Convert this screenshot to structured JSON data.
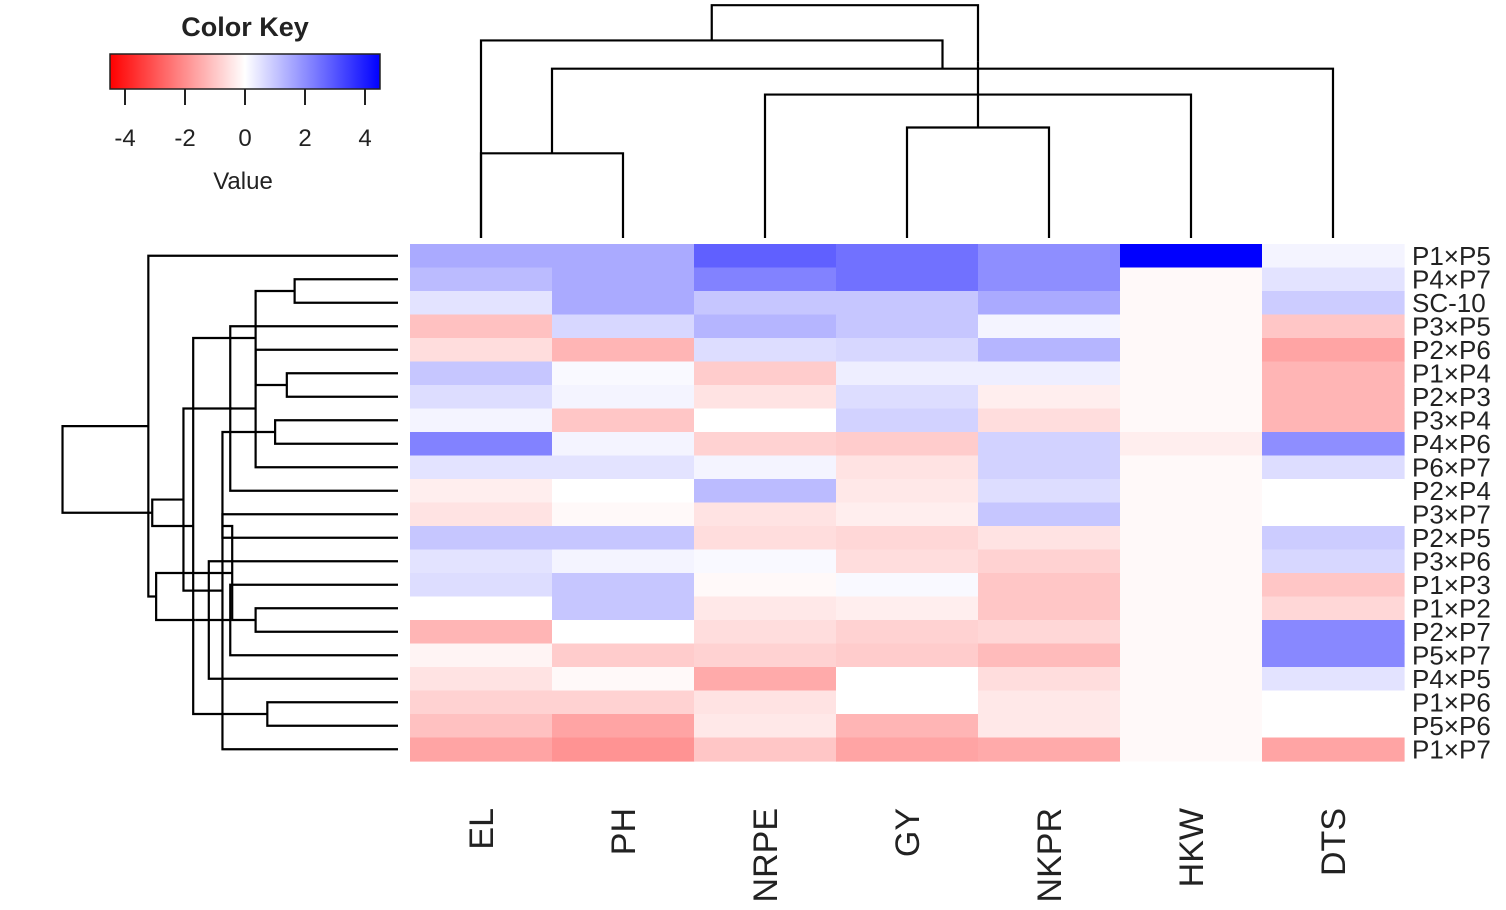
{
  "chart_data": {
    "type": "heatmap",
    "columns": [
      "EL",
      "PH",
      "NRPE",
      "GY",
      "NKPR",
      "HKW",
      "DTS"
    ],
    "rows": [
      "P1×P5",
      "P4×P7",
      "SC-10",
      "P3×P5",
      "P2×P6",
      "P1×P4",
      "P2×P3",
      "P3×P4",
      "P4×P6",
      "P6×P7",
      "P2×P4",
      "P3×P7",
      "P2×P5",
      "P3×P6",
      "P1×P3",
      "P1×P2",
      "P2×P7",
      "P5×P7",
      "P4×P5",
      "P1×P6",
      "P5×P6",
      "P1×P7"
    ],
    "values": [
      [
        1.5,
        1.5,
        2.8,
        2.5,
        2.0,
        4.5,
        0.2
      ],
      [
        1.2,
        1.5,
        2.2,
        2.5,
        2.0,
        -0.1,
        0.5
      ],
      [
        0.5,
        1.5,
        1.0,
        1.0,
        1.5,
        -0.1,
        0.9
      ],
      [
        -1.1,
        0.7,
        1.3,
        1.0,
        0.2,
        -0.1,
        -1.0
      ],
      [
        -0.6,
        -1.3,
        0.6,
        0.7,
        1.3,
        -0.1,
        -1.6
      ],
      [
        1.0,
        0.1,
        -0.9,
        0.3,
        0.3,
        -0.1,
        -1.3
      ],
      [
        0.6,
        0.2,
        -0.5,
        0.6,
        -0.3,
        -0.1,
        -1.3
      ],
      [
        0.2,
        -1.0,
        0.0,
        0.8,
        -0.6,
        -0.1,
        -1.3
      ],
      [
        2.2,
        0.2,
        -0.8,
        -0.9,
        0.8,
        -0.3,
        2.0
      ],
      [
        0.5,
        0.5,
        0.2,
        -0.5,
        0.8,
        -0.1,
        0.6
      ],
      [
        -0.3,
        0.0,
        1.2,
        -0.4,
        0.6,
        -0.1,
        0.0
      ],
      [
        -0.5,
        -0.1,
        -0.5,
        -0.3,
        1.0,
        -0.1,
        0.0
      ],
      [
        1.0,
        1.0,
        -0.6,
        -0.7,
        -0.5,
        -0.1,
        0.9
      ],
      [
        0.5,
        0.2,
        0.1,
        -0.6,
        -0.8,
        -0.1,
        0.7
      ],
      [
        0.6,
        1.0,
        -0.1,
        0.1,
        -1.0,
        -0.1,
        -1.0
      ],
      [
        0.0,
        1.0,
        -0.4,
        -0.3,
        -1.0,
        -0.1,
        -0.7
      ],
      [
        -1.3,
        0.0,
        -0.6,
        -0.8,
        -0.7,
        -0.1,
        2.1
      ],
      [
        -0.2,
        -0.9,
        -0.8,
        -0.9,
        -1.2,
        -0.1,
        2.1
      ],
      [
        -0.5,
        -0.1,
        -1.5,
        0.0,
        -0.6,
        -0.1,
        0.5
      ],
      [
        -0.8,
        -0.8,
        -0.5,
        0.0,
        -0.4,
        -0.1,
        0.0
      ],
      [
        -1.1,
        -1.6,
        -0.4,
        -1.3,
        -0.4,
        -0.1,
        0.0
      ],
      [
        -1.6,
        -1.9,
        -1.0,
        -1.6,
        -1.5,
        -0.1,
        -1.6
      ]
    ],
    "color_key": {
      "title": "Color Key",
      "xlabel": "Value",
      "range": [
        -4.5,
        4.5
      ],
      "ticks": [
        -4,
        -2,
        0,
        2,
        4
      ],
      "tick_labels": [
        "-4",
        "-2",
        "0",
        "2",
        "4"
      ],
      "low_color": "#ff0000",
      "mid_color": "#ffffff",
      "high_color": "#0000ff"
    },
    "col_dendrogram": [
      [
        1,
        2,
        3.6
      ],
      [
        4,
        5,
        4.7
      ],
      [
        3,
        6,
        6.1
      ],
      [
        8,
        7,
        7.2
      ],
      [
        9,
        10,
        7.5
      ],
      [
        -1,
        11,
        8.4
      ],
      [
        12,
        13,
        9.9
      ]
    ],
    "row_dendrogram": [
      [
        2,
        3,
        5.3
      ],
      [
        6,
        7,
        5.7
      ],
      [
        8,
        9,
        6.3
      ],
      [
        5,
        10,
        7.3
      ],
      [
        4,
        11,
        8.6
      ],
      [
        12,
        13,
        9.0
      ],
      [
        16,
        17,
        7.3
      ],
      [
        15,
        18,
        8.6
      ],
      [
        14,
        19,
        9.7
      ],
      [
        20,
        21,
        6.7
      ],
      [
        23,
        24,
        7.3
      ],
      [
        22,
        25,
        9.0
      ],
      [
        26,
        27,
        8.5
      ],
      [
        28,
        29,
        8.5
      ],
      [
        30,
        31,
        10.4
      ],
      [
        32,
        33,
        10.5
      ],
      [
        34,
        35,
        11.0
      ],
      [
        36,
        37,
        12.4
      ],
      [
        38,
        39,
        12.6
      ],
      [
        1,
        40,
        12.8
      ],
      [
        41,
        42,
        17.2
      ]
    ],
    "row_dendrogram_max": 20.2,
    "col_dendrogram_max": 9.95
  }
}
